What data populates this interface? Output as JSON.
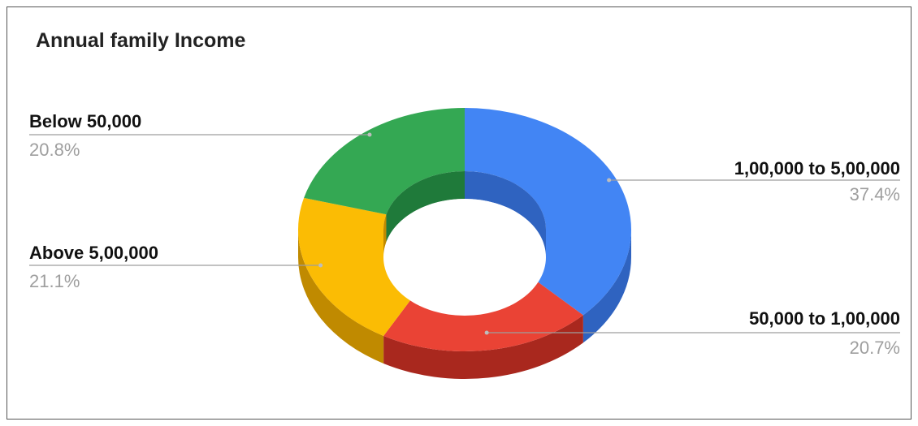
{
  "chart_data": {
    "type": "pie",
    "variant": "3d-donut",
    "title": "Annual family Income",
    "slices": [
      {
        "label": "1,00,000 to 5,00,000",
        "value": 37.4,
        "value_label": "37.4%",
        "color": "#4285f4",
        "side_color": "#2f63c0"
      },
      {
        "label": "50,000 to 1,00,000",
        "value": 20.7,
        "value_label": "20.7%",
        "color": "#ea4335",
        "side_color": "#a9281e"
      },
      {
        "label": "Above 5,00,000",
        "value": 21.1,
        "value_label": "21.1%",
        "color": "#fbbc04",
        "side_color": "#c08a00"
      },
      {
        "label": "Below 50,000",
        "value": 20.8,
        "value_label": "20.8%",
        "color": "#34a853",
        "side_color": "#1f7a3a"
      }
    ],
    "legend": "none"
  }
}
